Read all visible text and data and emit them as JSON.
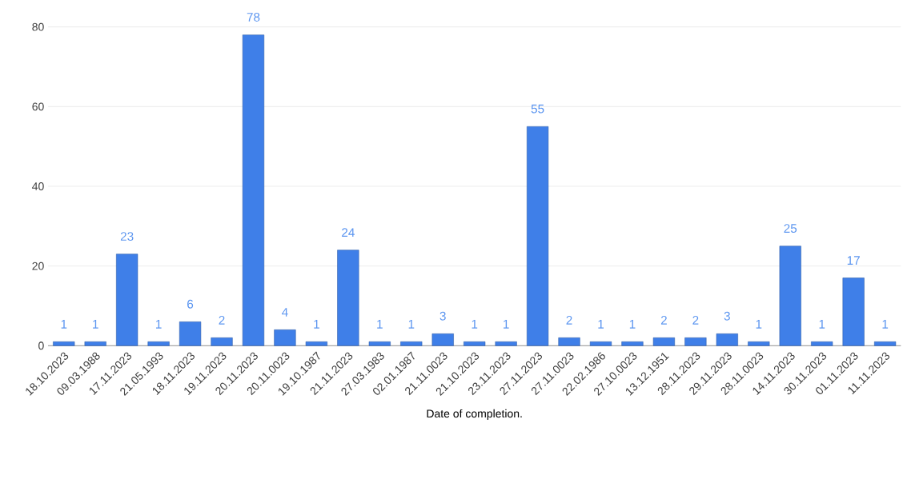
{
  "chart_data": {
    "type": "bar",
    "xlabel": "Date of completion.",
    "categories": [
      "18.10.2023",
      "09.03.1988",
      "17.11.2023",
      "21.05.1993",
      "18.11.2023",
      "19.11.2023",
      "20.11.2023",
      "20.11.0023",
      "19.10.1987",
      "21.11.2023",
      "27.03.1983",
      "02.01.1987",
      "21.11.0023",
      "21.10.2023",
      "23.11.2023",
      "27.11.2023",
      "27.11.0023",
      "22.02.1986",
      "27.10.0023",
      "13.12.1951",
      "28.11.2023",
      "29.11.2023",
      "28.11.0023",
      "14.11.2023",
      "30.11.2023",
      "01.11.2023",
      "11.11.2023"
    ],
    "values": [
      1,
      1,
      23,
      1,
      6,
      2,
      78,
      4,
      1,
      24,
      1,
      1,
      3,
      1,
      1,
      55,
      2,
      1,
      1,
      2,
      2,
      3,
      1,
      25,
      1,
      17,
      1
    ],
    "color": "#3f7fe8",
    "ylim": [
      0,
      80
    ],
    "yticks": [
      0,
      20,
      40,
      60,
      80
    ],
    "grid": "y",
    "data_labels": true
  }
}
